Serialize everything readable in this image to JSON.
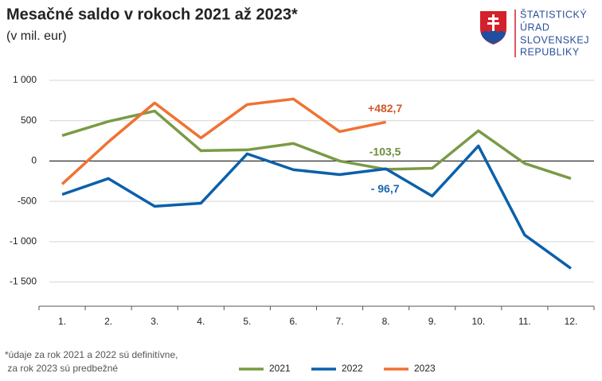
{
  "chart_data": {
    "type": "line",
    "title": "Mesačné saldo v rokoch 2021 až 2023*",
    "subtitle": "(v mil. eur)",
    "logo_text": [
      "ŠTATISTICKÝ",
      "ÚRAD",
      "SLOVENSKEJ",
      "REPUBLIKY"
    ],
    "footnote": [
      "*údaje za rok 2021 a 2022 sú definitívne,",
      " za rok 2023 sú predbežné"
    ],
    "categories": [
      "1.",
      "2.",
      "3.",
      "4.",
      "5.",
      "6.",
      "7.",
      "8.",
      "9.",
      "10.",
      "11.",
      "12."
    ],
    "series": [
      {
        "name": "2021",
        "color": "#7b9a45",
        "label_color": "#6e8c3b",
        "values": [
          315,
          490,
          620,
          128,
          138,
          217,
          0,
          -103.5,
          -90,
          375,
          -30,
          -217
        ],
        "value_labels": [
          null,
          null,
          null,
          null,
          null,
          null,
          null,
          "-103,5",
          null,
          null,
          null,
          null
        ]
      },
      {
        "name": "2022",
        "color": "#0b60aa",
        "label_color": "#1a66b0",
        "values": [
          -415,
          -217,
          -562,
          -523,
          89,
          -108,
          -168,
          -96.7,
          -434,
          187,
          -917,
          -1331
        ],
        "value_labels": [
          null,
          null,
          null,
          null,
          null,
          null,
          null,
          "- 96,7",
          null,
          null,
          null,
          null
        ]
      },
      {
        "name": "2023",
        "color": "#f07232",
        "label_color": "#cf5a2c",
        "values": [
          -286,
          237,
          720,
          286,
          700,
          769,
          365,
          482.7,
          null,
          null,
          null,
          null
        ],
        "value_labels": [
          null,
          null,
          null,
          null,
          null,
          null,
          null,
          "+482,7",
          null,
          null,
          null,
          null
        ]
      }
    ],
    "ylim": [
      -1800,
      1000
    ],
    "yticks": [
      {
        "value": 1000,
        "label": "1 000"
      },
      500,
      0,
      -500,
      {
        "value": -1000,
        "label": "-1 000"
      },
      {
        "value": -1500,
        "label": "-1 500"
      }
    ],
    "grid": true
  }
}
